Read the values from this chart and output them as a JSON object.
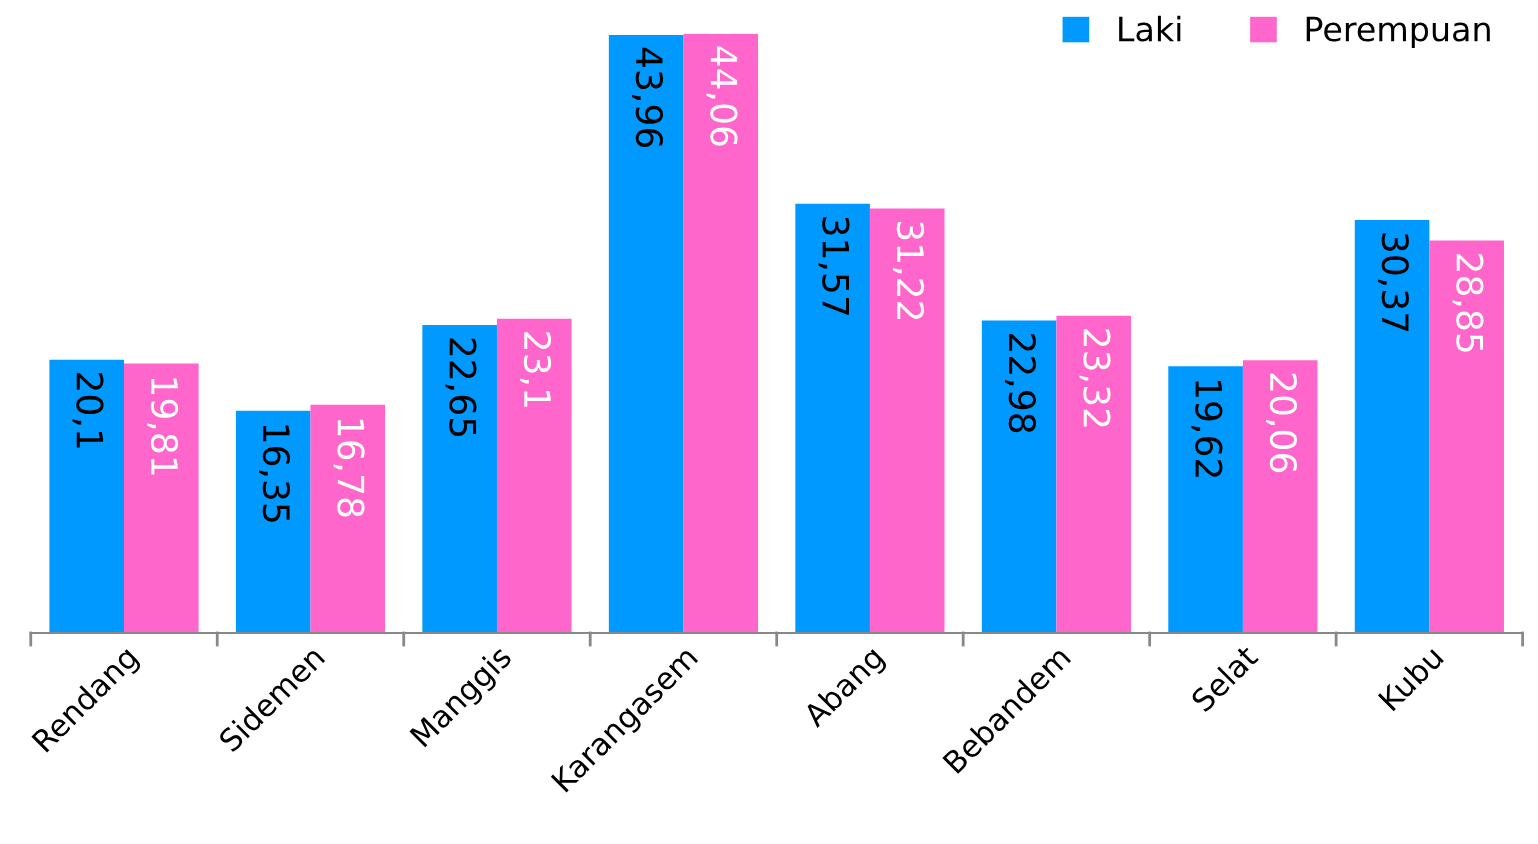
{
  "chart_data": {
    "type": "bar",
    "categories": [
      "Rendang",
      "Sidemen",
      "Manggis",
      "Karangasem",
      "Abang",
      "Bebandem",
      "Selat",
      "Kubu"
    ],
    "series": [
      {
        "name": "Laki",
        "color": "#0099ff",
        "values": [
          20.1,
          16.35,
          22.65,
          43.96,
          31.57,
          22.98,
          19.62,
          30.37
        ],
        "value_labels": [
          "20,1",
          "16,35",
          "22,65",
          "43,96",
          "31,57",
          "22,98",
          "19,62",
          "30,37"
        ]
      },
      {
        "name": "Perempuan",
        "color": "#ff66cc",
        "values": [
          19.81,
          16.78,
          23.1,
          44.06,
          31.22,
          23.32,
          20.06,
          28.85
        ],
        "value_labels": [
          "19,81",
          "16,78",
          "23,1",
          "44,06",
          "31,22",
          "23,32",
          "20,06",
          "28,85"
        ]
      }
    ],
    "legend": "top right",
    "grid": false
  }
}
